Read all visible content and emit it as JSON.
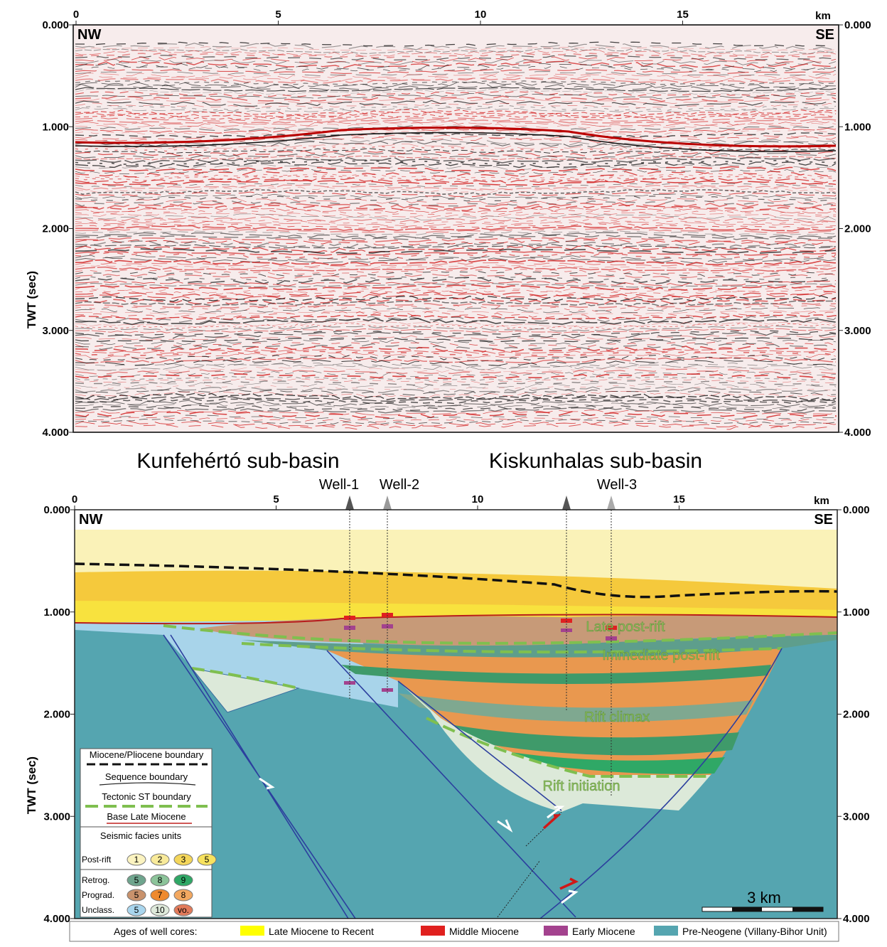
{
  "top_panel": {
    "x_ticks": [
      0,
      5,
      10,
      15
    ],
    "x_unit": "km",
    "y_ticks": [
      {
        "value": 0,
        "label": "0.000"
      },
      {
        "value": 1,
        "label": "1.000"
      },
      {
        "value": 2,
        "label": "2.000"
      },
      {
        "value": 3,
        "label": "3.000"
      },
      {
        "value": 4,
        "label": "4.000"
      }
    ],
    "y_label": "TWT (sec)",
    "left_corner": "NW",
    "right_corner": "SE"
  },
  "bottom_panel": {
    "subbasins": [
      "Kunfehértó sub-basin",
      "Kiskunhalas sub-basin"
    ],
    "wells": [
      "Well-1",
      "Well-2",
      "Well-3"
    ],
    "x_ticks": [
      0,
      5,
      10,
      15
    ],
    "x_unit": "km",
    "y_ticks": [
      {
        "value": 0,
        "label": "0.000"
      },
      {
        "value": 1,
        "label": "1.000"
      },
      {
        "value": 2,
        "label": "2.000"
      },
      {
        "value": 3,
        "label": "3.000"
      },
      {
        "value": 4,
        "label": "4.000"
      }
    ],
    "y_label": "TWT (sec)",
    "left_corner": "NW",
    "right_corner": "SE",
    "units": [
      "Late post-rift",
      "Immediate post-rift",
      "Rift climax",
      "Rift initiation"
    ],
    "scale_bar": "3 km",
    "legend": {
      "lines": [
        "Miocene/Pliocene boundary",
        "Sequence boundary",
        "Tectonic ST boundary",
        "Base Late Miocene"
      ],
      "facies_title": "Seismic facies units",
      "facies_groups": [
        {
          "name": "Post-rift",
          "items": [
            {
              "label": "1",
              "color": "#fbf3c0"
            },
            {
              "label": "2",
              "color": "#f8ea9a"
            },
            {
              "label": "3",
              "color": "#f4d65a"
            },
            {
              "label": "5",
              "color": "#f7e25e"
            }
          ]
        },
        {
          "name": "Retrog.",
          "items": [
            {
              "label": "5",
              "color": "#6fa58e"
            },
            {
              "label": "8",
              "color": "#8cc49a"
            },
            {
              "label": "9",
              "color": "#2fa866"
            }
          ]
        },
        {
          "name": "Prograd.",
          "items": [
            {
              "label": "5",
              "color": "#c9926c"
            },
            {
              "label": "7",
              "color": "#ef8a2e"
            },
            {
              "label": "8",
              "color": "#f3a860"
            }
          ]
        },
        {
          "name": "Unclass.",
          "items": [
            {
              "label": "5",
              "color": "#a9d6ee"
            },
            {
              "label": "10",
              "color": "#dfeadb"
            },
            {
              "label": "vo.",
              "color": "#e27a5a"
            }
          ]
        }
      ]
    }
  },
  "ages_legend": {
    "title": "Ages of well cores:",
    "items": [
      {
        "label": "Late Miocene to Recent",
        "color": "#ffff00"
      },
      {
        "label": "Middle Miocene",
        "color": "#e0201e"
      },
      {
        "label": "Early Miocene",
        "color": "#a3428e"
      },
      {
        "label": "Pre-Neogene (Villany-Bihor Unit)",
        "color": "#55a5b0"
      }
    ]
  }
}
